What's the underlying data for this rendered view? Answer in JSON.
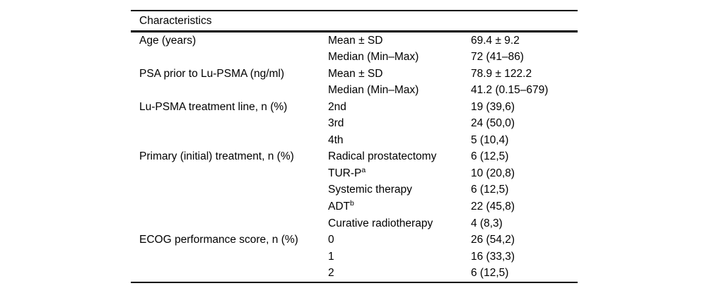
{
  "style": {
    "background": "#ffffff",
    "text_color": "#000000",
    "rule_color": "#000000"
  },
  "table": {
    "header": "Characteristics",
    "columns": [
      "characteristic",
      "statistic",
      "value"
    ],
    "rows": [
      {
        "label": "Age (years)",
        "stat": "Mean ± SD",
        "value": "69.4 ± 9.2"
      },
      {
        "label": "",
        "stat": "Median (Min–Max)",
        "value": "72 (41–86)"
      },
      {
        "label": "PSA prior to Lu-PSMA (ng/ml)",
        "stat": "Mean ± SD",
        "value": "78.9 ± 122.2"
      },
      {
        "label": "",
        "stat": "Median (Min–Max)",
        "value": "41.2 (0.15–679)"
      },
      {
        "label": "Lu-PSMA treatment line, n (%)",
        "stat": "2nd",
        "value": "19 (39,6)"
      },
      {
        "label": "",
        "stat": "3rd",
        "value": "24 (50,0)"
      },
      {
        "label": "",
        "stat": "4th",
        "value": "5 (10,4)"
      },
      {
        "label": "Primary (initial) treatment, n (%)",
        "stat": "Radical prostatectomy",
        "value": "6 (12,5)"
      },
      {
        "label": "",
        "stat": "TUR-P",
        "stat_sup": "a",
        "value": "10 (20,8)"
      },
      {
        "label": "",
        "stat": "Systemic therapy",
        "value": "6 (12,5)"
      },
      {
        "label": "",
        "stat": "ADT",
        "stat_sup": "b",
        "value": "22 (45,8)"
      },
      {
        "label": "",
        "stat": "Curative radiotherapy",
        "value": "4 (8,3)"
      },
      {
        "label": "ECOG performance score, n (%)",
        "stat": "0",
        "value": "26 (54,2)"
      },
      {
        "label": "",
        "stat": "1",
        "value": "16 (33,3)"
      },
      {
        "label": "",
        "stat": "2",
        "value": "6 (12,5)"
      }
    ]
  }
}
